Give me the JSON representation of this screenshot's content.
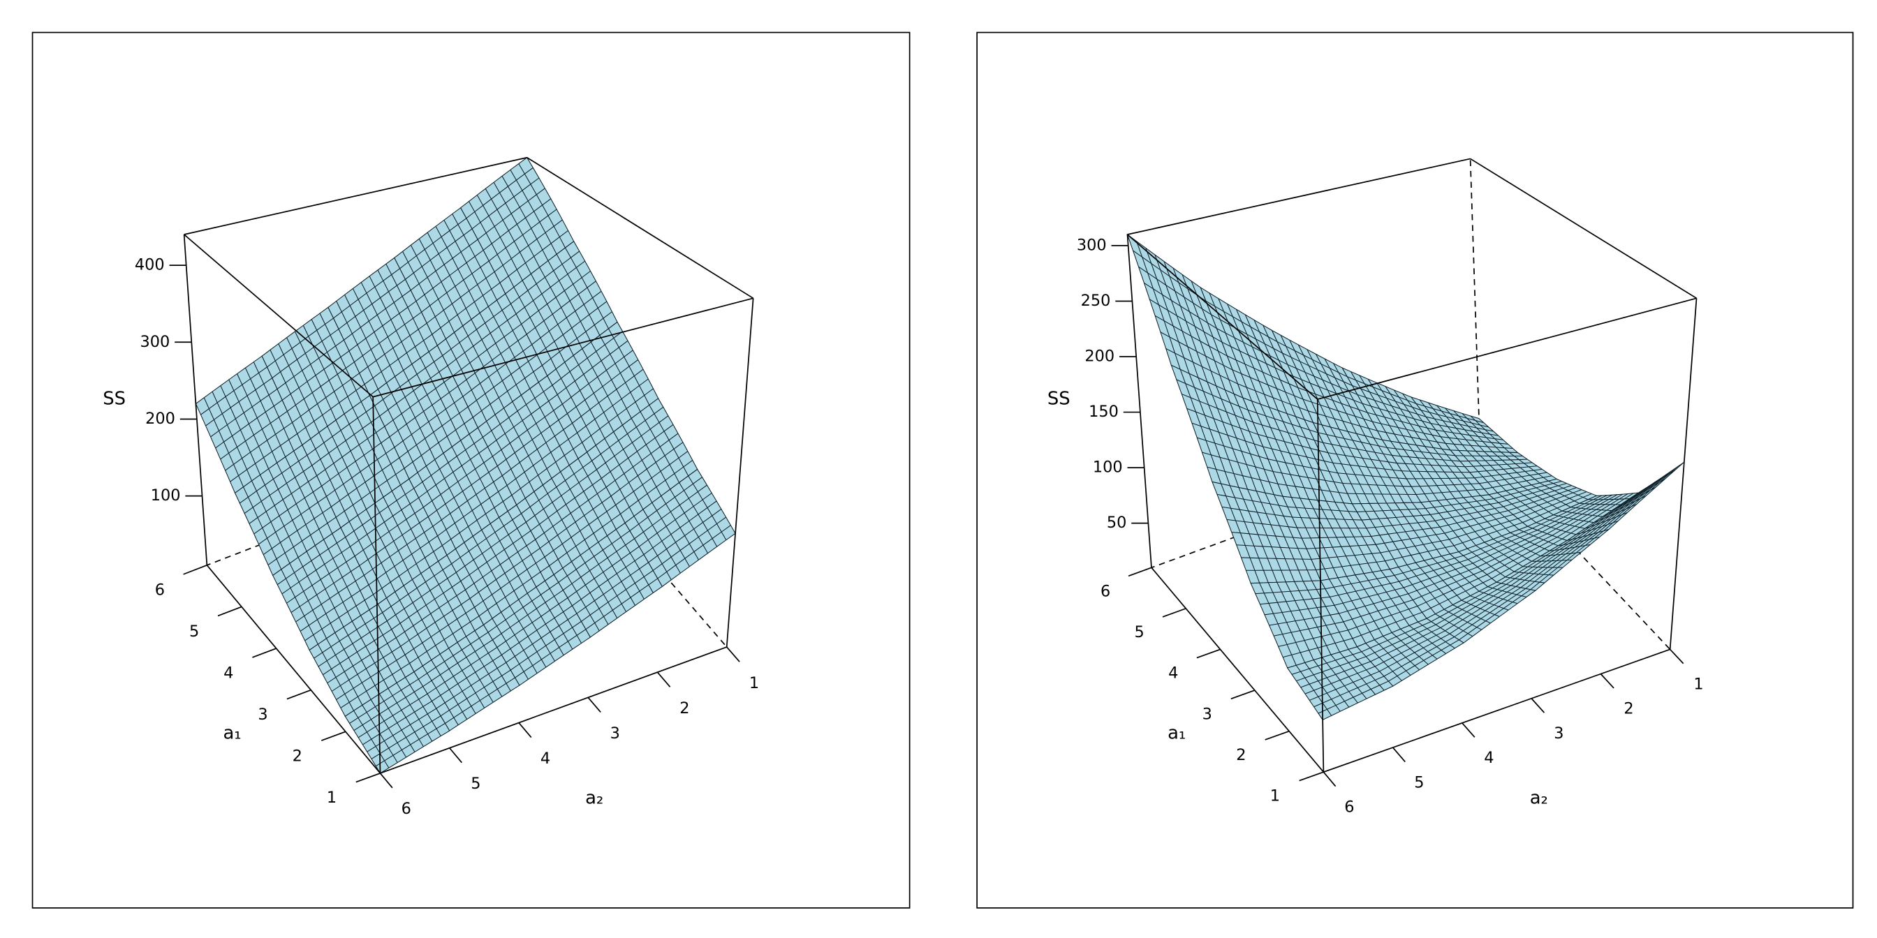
{
  "chart_data": [
    {
      "type": "surface",
      "x_label": "a₁",
      "y_label": "a₂",
      "z_label": "SS",
      "x": [
        1,
        2,
        3,
        4,
        5,
        6
      ],
      "y": [
        1,
        2,
        3,
        4,
        5,
        6
      ],
      "z": [
        [
          150,
          114,
          82,
          54,
          30,
          10
        ],
        [
          184,
          145,
          110,
          78,
          51,
          28
        ],
        [
          230,
          188,
          149,
          115,
          84,
          58
        ],
        [
          288,
          242,
          201,
          163,
          130,
          100
        ],
        [
          358,
          309,
          264,
          224,
          187,
          154
        ],
        [
          440,
          388,
          340,
          296,
          256,
          220
        ]
      ],
      "xlim": [
        1,
        6
      ],
      "ylim": [
        1,
        6
      ],
      "zlim": [
        10,
        440
      ],
      "xticks": [
        1,
        2,
        3,
        4,
        5,
        6
      ],
      "yticks": [
        1,
        2,
        3,
        4,
        5,
        6
      ],
      "zticks": [
        100,
        200,
        300,
        400
      ],
      "color": "#add8e6"
    },
    {
      "type": "surface",
      "x_label": "a₁",
      "y_label": "a₂",
      "z_label": "SS",
      "x": [
        1,
        2,
        3,
        4,
        5,
        6
      ],
      "y": [
        1,
        2,
        3,
        4,
        5,
        6
      ],
      "z": [
        [
          170,
          132,
          100,
          76,
          60,
          52
        ],
        [
          113,
          91,
          75,
          64,
          60,
          62
        ],
        [
          77,
          70,
          68,
          73,
          83,
          100
        ],
        [
          57,
          64,
          78,
          97,
          123,
          154
        ],
        [
          45,
          70,
          101,
          137,
          178,
          224
        ],
        [
          40,
          85,
          135,
          190,
          247,
          310
        ]
      ],
      "xlim": [
        1,
        6
      ],
      "ylim": [
        1,
        6
      ],
      "zlim": [
        10,
        310
      ],
      "xticks": [
        1,
        2,
        3,
        4,
        5,
        6
      ],
      "yticks": [
        1,
        2,
        3,
        4,
        5,
        6
      ],
      "zticks": [
        50,
        100,
        150,
        200,
        250,
        300
      ],
      "color": "#add8e6"
    }
  ]
}
